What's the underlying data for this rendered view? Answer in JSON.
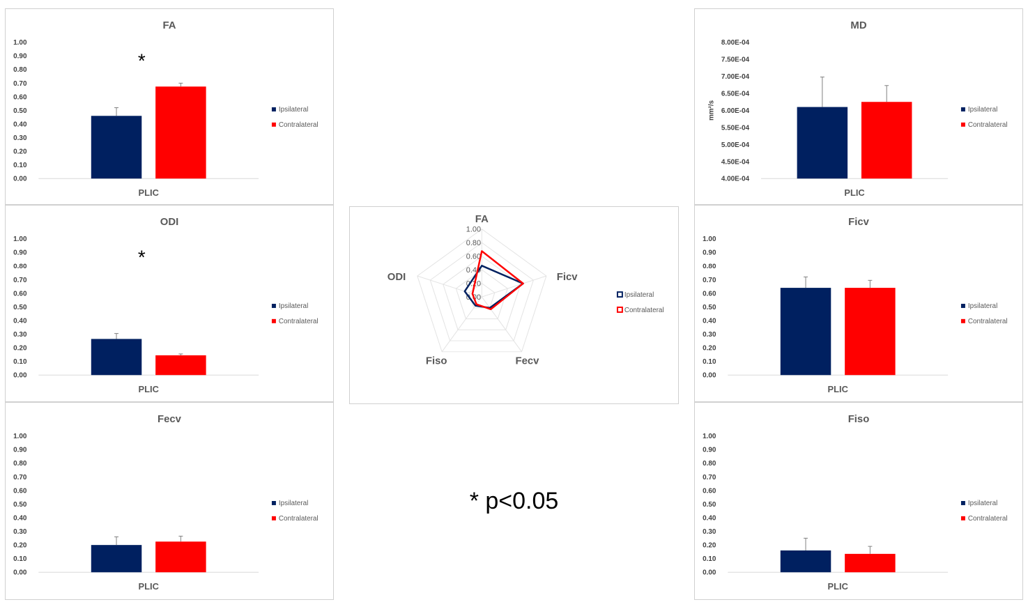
{
  "colors": {
    "ipsilateral": "#002060",
    "contralateral": "#ff0000",
    "grid": "#d9d9d9",
    "axis": "#d9d9d9",
    "error": "#808080"
  },
  "significance_note": "* p<0.05",
  "chart_data": [
    {
      "id": "fa",
      "type": "bar",
      "title": "FA",
      "ylabel": "",
      "categories": [
        "PLIC"
      ],
      "ylim": [
        0,
        1
      ],
      "ytick_step": 0.1,
      "tick_format": "fixed2",
      "significance": "*",
      "series": [
        {
          "name": "Ipsilateral",
          "values": [
            0.46
          ],
          "error": [
            0.06
          ]
        },
        {
          "name": "Contralateral",
          "values": [
            0.675
          ],
          "error": [
            0.025
          ]
        }
      ]
    },
    {
      "id": "md",
      "type": "bar",
      "title": "MD",
      "ylabel": "mm²/s",
      "categories": [
        "PLIC"
      ],
      "ylim": [
        0.0004,
        0.0008
      ],
      "ytick_step": 5e-05,
      "tick_format": "sci",
      "significance": "",
      "series": [
        {
          "name": "Ipsilateral",
          "values": [
            0.00061
          ],
          "error": [
            8.8e-05
          ]
        },
        {
          "name": "Contralateral",
          "values": [
            0.000625
          ],
          "error": [
            4.8e-05
          ]
        }
      ]
    },
    {
      "id": "odi",
      "type": "bar",
      "title": "ODI",
      "ylabel": "",
      "categories": [
        "PLIC"
      ],
      "ylim": [
        0,
        1
      ],
      "ytick_step": 0.1,
      "tick_format": "fixed2",
      "significance": "*",
      "series": [
        {
          "name": "Ipsilateral",
          "values": [
            0.265
          ],
          "error": [
            0.04
          ]
        },
        {
          "name": "Contralateral",
          "values": [
            0.145
          ],
          "error": [
            0.01
          ]
        }
      ]
    },
    {
      "id": "ficv",
      "type": "bar",
      "title": "Ficv",
      "ylabel": "",
      "categories": [
        "PLIC"
      ],
      "ylim": [
        0,
        1
      ],
      "ytick_step": 0.1,
      "tick_format": "fixed2",
      "significance": "",
      "series": [
        {
          "name": "Ipsilateral",
          "values": [
            0.64
          ],
          "error": [
            0.08
          ]
        },
        {
          "name": "Contralateral",
          "values": [
            0.64
          ],
          "error": [
            0.055
          ]
        }
      ]
    },
    {
      "id": "fecv",
      "type": "bar",
      "title": "Fecv",
      "ylabel": "",
      "categories": [
        "PLIC"
      ],
      "ylim": [
        0,
        1
      ],
      "ytick_step": 0.1,
      "tick_format": "fixed2",
      "significance": "",
      "series": [
        {
          "name": "Ipsilateral",
          "values": [
            0.2
          ],
          "error": [
            0.06
          ]
        },
        {
          "name": "Contralateral",
          "values": [
            0.225
          ],
          "error": [
            0.04
          ]
        }
      ]
    },
    {
      "id": "fiso",
      "type": "bar",
      "title": "Fiso",
      "ylabel": "",
      "categories": [
        "PLIC"
      ],
      "ylim": [
        0,
        1
      ],
      "ytick_step": 0.1,
      "tick_format": "fixed2",
      "significance": "",
      "series": [
        {
          "name": "Ipsilateral",
          "values": [
            0.16
          ],
          "error": [
            0.09
          ]
        },
        {
          "name": "Contralateral",
          "values": [
            0.135
          ],
          "error": [
            0.055
          ]
        }
      ]
    },
    {
      "id": "radar",
      "type": "radar",
      "title": "",
      "axes": [
        "FA",
        "Ficv",
        "Fecv",
        "Fiso",
        "ODI"
      ],
      "rlim": [
        0,
        1
      ],
      "rticks": [
        "0.00",
        "0.20",
        "0.40",
        "0.60",
        "0.80",
        "1.00"
      ],
      "series": [
        {
          "name": "Ipsilateral",
          "values": [
            0.46,
            0.64,
            0.2,
            0.16,
            0.265
          ]
        },
        {
          "name": "Contralateral",
          "values": [
            0.675,
            0.64,
            0.225,
            0.135,
            0.145
          ]
        }
      ]
    }
  ]
}
